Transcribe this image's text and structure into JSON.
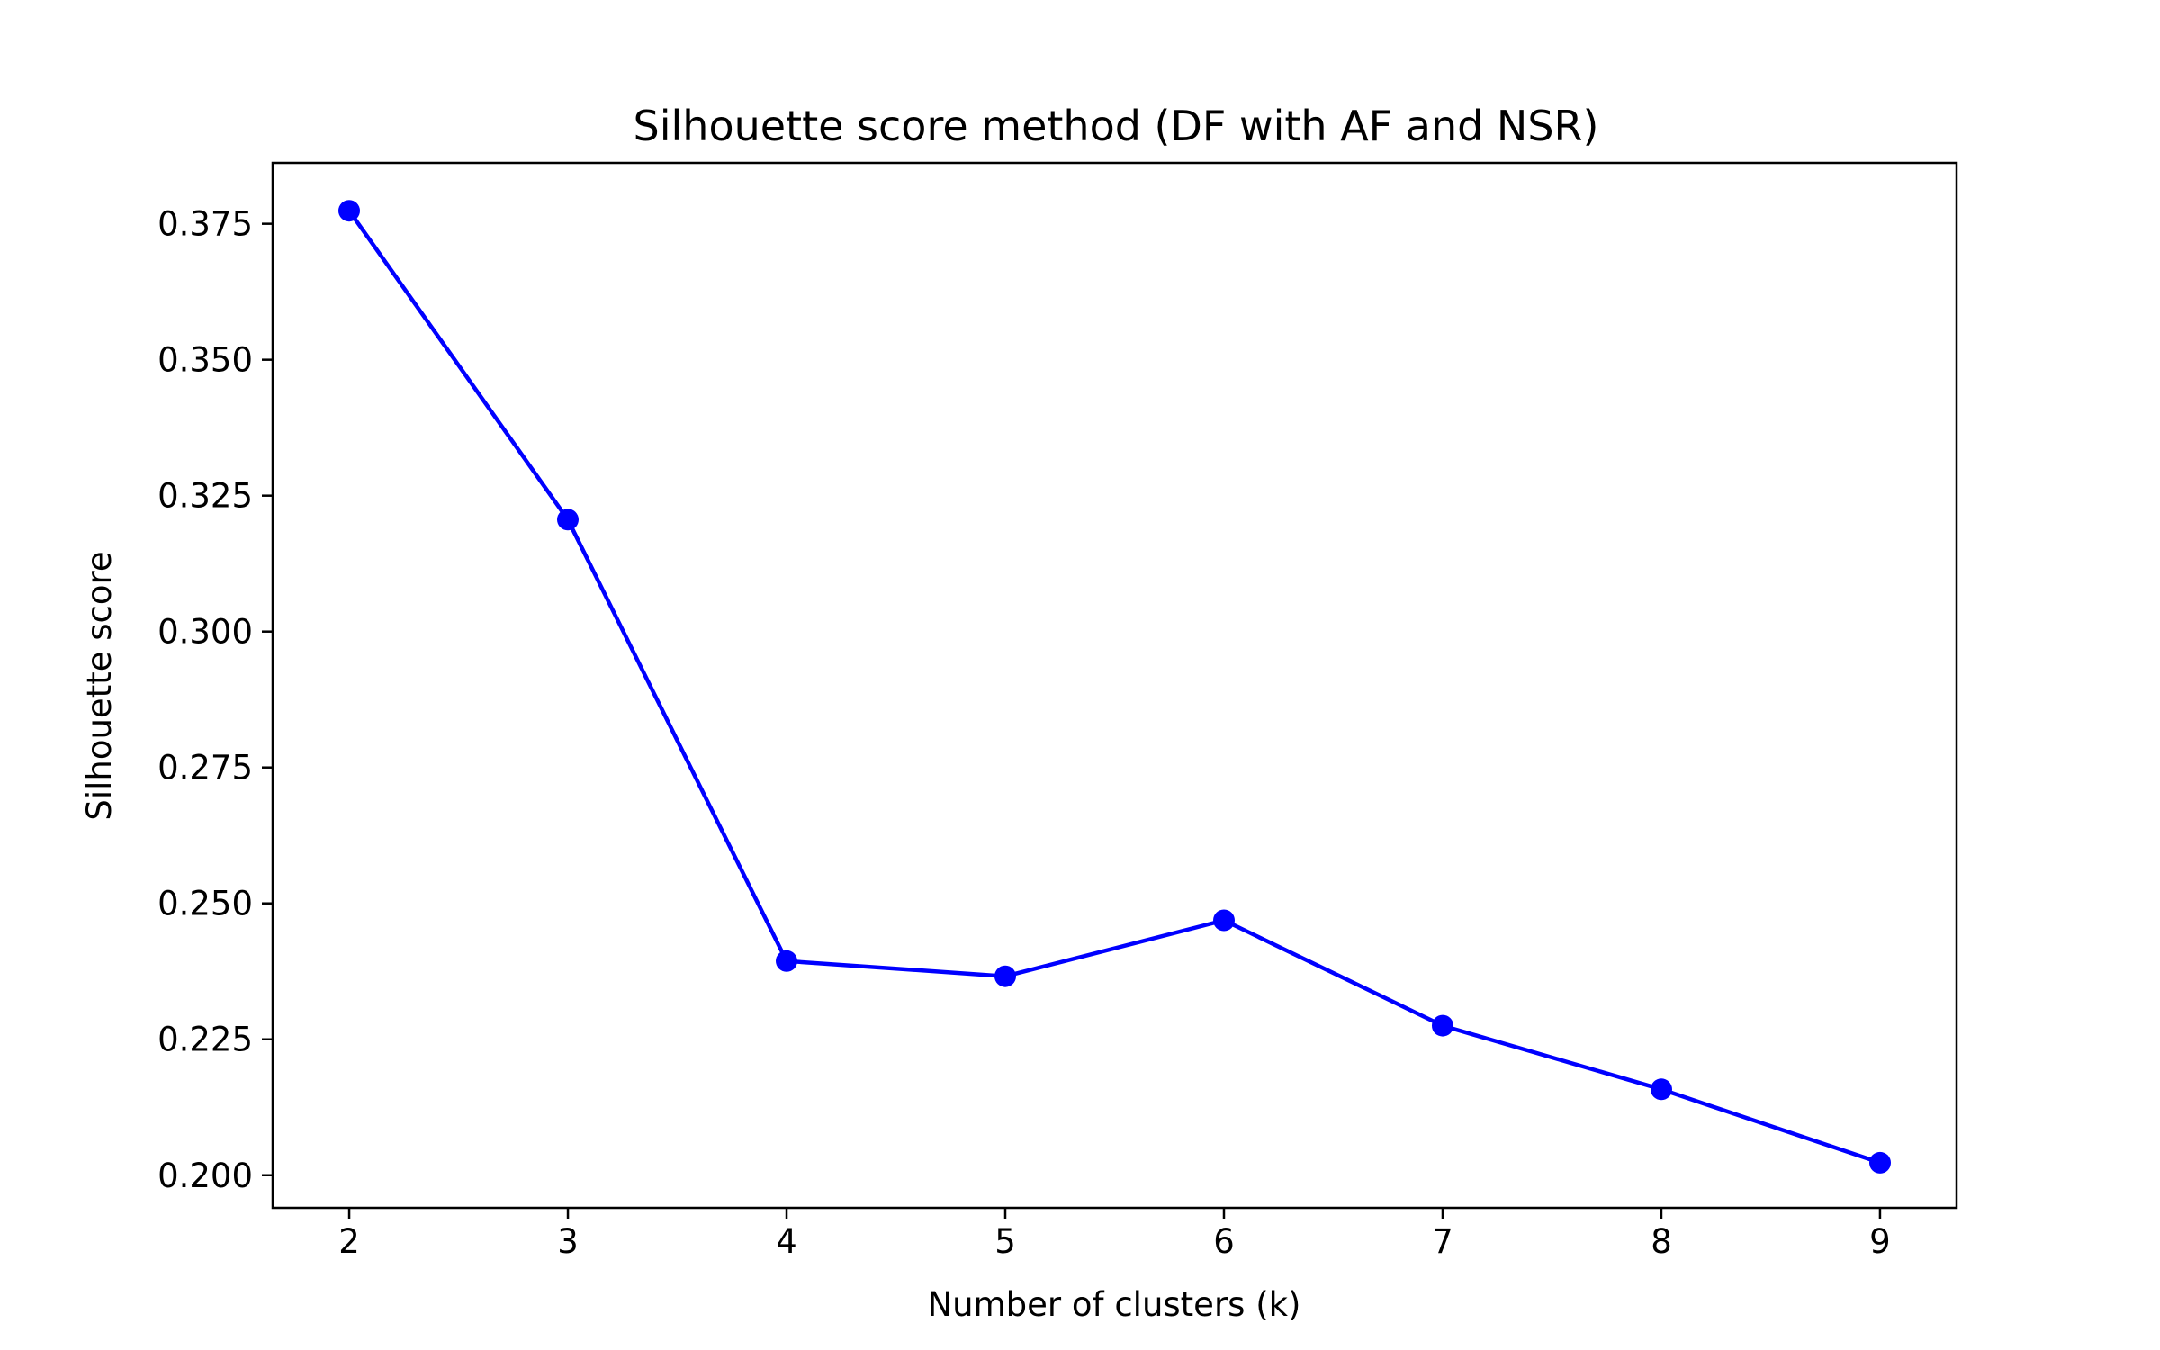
{
  "chart_data": {
    "type": "line",
    "title": "Silhouette score method (DF with AF and NSR)",
    "xlabel": "Number of clusters (k)",
    "ylabel": "Silhouette score",
    "x": [
      2,
      3,
      4,
      5,
      6,
      7,
      8,
      9
    ],
    "series": [
      {
        "values": [
          0.3774,
          0.3206,
          0.2394,
          0.2366,
          0.2469,
          0.2275,
          0.2158,
          0.2023
        ],
        "color": "#0000ff",
        "marker": "circle"
      }
    ],
    "xticks": [
      "2",
      "3",
      "4",
      "5",
      "6",
      "7",
      "8",
      "9"
    ],
    "yticks": [
      "0.200",
      "0.225",
      "0.250",
      "0.275",
      "0.300",
      "0.325",
      "0.350",
      "0.375"
    ],
    "xlim": [
      1.65,
      9.35
    ],
    "ylim": [
      0.194,
      0.3862
    ],
    "grid": false,
    "legend": "none"
  }
}
